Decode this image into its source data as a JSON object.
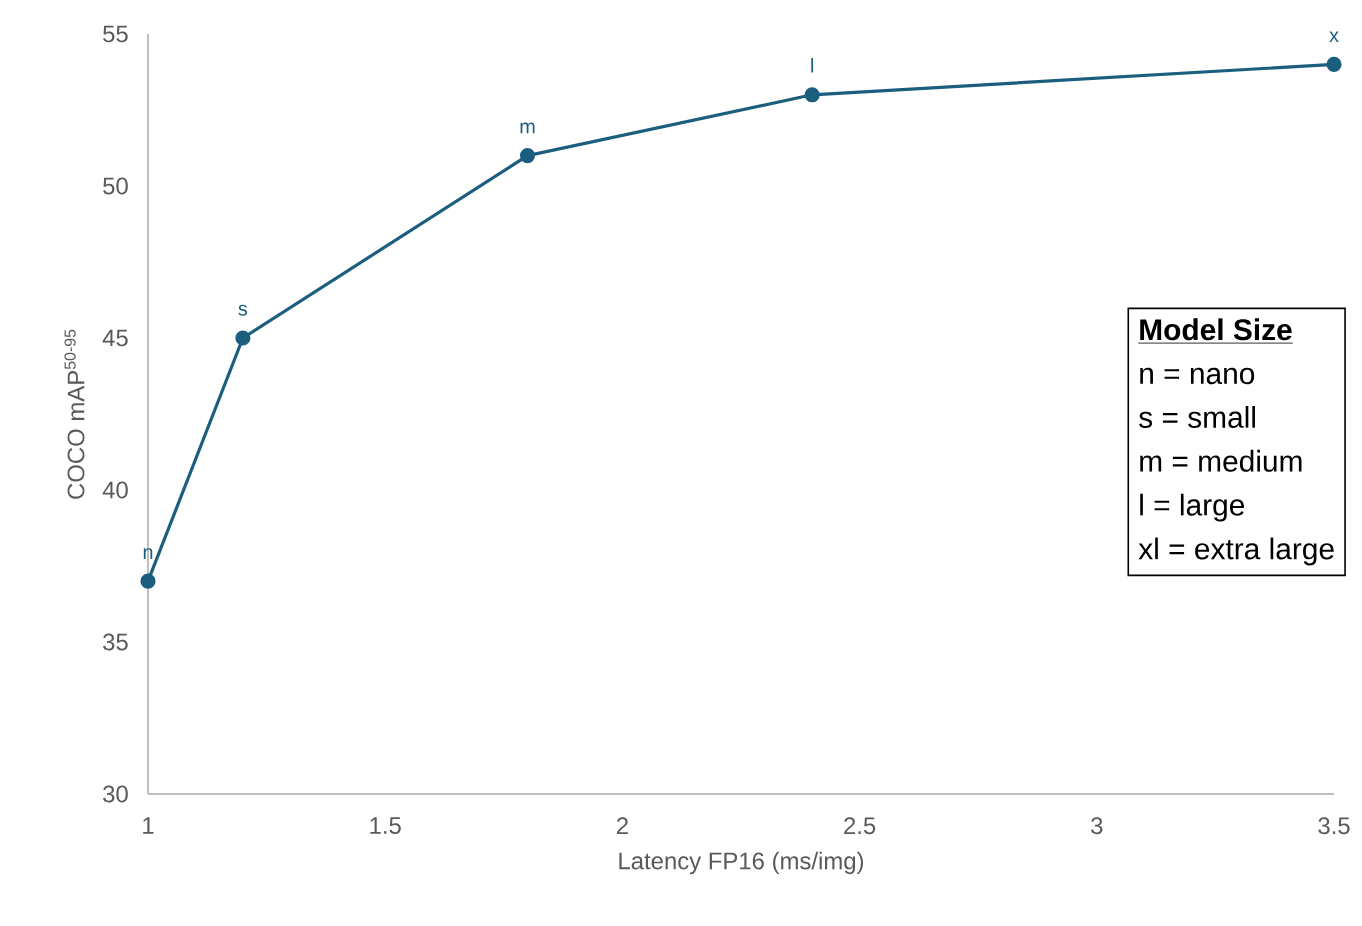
{
  "chart_data": {
    "type": "line",
    "xlabel": "Latency FP16 (ms/img)",
    "ylabel": "COCO mAP$^{50-95}$",
    "x": [
      1,
      1.2,
      1.8,
      2.4,
      3.5
    ],
    "series": [
      {
        "color": "#1b5e7e",
        "values": [
          37,
          45,
          51,
          53,
          54
        ]
      }
    ],
    "marker": "circle",
    "line_style": "solid",
    "grid": false,
    "legend": false,
    "xlim": [
      1,
      3.5
    ],
    "xticks": [
      1,
      1.5,
      2,
      2.5,
      3,
      3.5
    ],
    "ylim": [
      30,
      55
    ],
    "yticks": [
      30,
      35,
      40,
      45,
      50,
      55
    ],
    "annotations": [
      {
        "text": "n",
        "x": 1,
        "y": 37
      },
      {
        "text": "s",
        "x": 1.2,
        "y": 45
      },
      {
        "text": "m",
        "x": 1.8,
        "y": 51
      },
      {
        "text": "l",
        "x": 2.4,
        "y": 53
      },
      {
        "text": "x",
        "x": 3.5,
        "y": 54
      },
      "Model Size",
      "n = nano",
      "s = small",
      "m = medium",
      "l = large",
      "xl = extra large"
    ]
  }
}
